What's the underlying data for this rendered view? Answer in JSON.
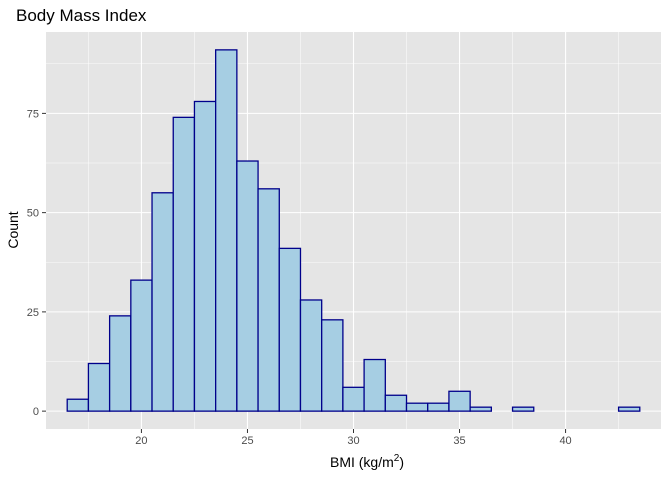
{
  "chart_data": {
    "type": "bar",
    "title": "Body Mass Index",
    "xlabel": "BMI (kg/m",
    "xlabel_superscript": "2",
    "xlabel_suffix": ")",
    "ylabel": "Count",
    "xlim": [
      15.5,
      44.5
    ],
    "ylim": [
      -4.5,
      95.5
    ],
    "x_ticks": [
      20,
      25,
      30,
      35,
      40
    ],
    "x_tick_labels": [
      "20",
      "25",
      "30",
      "35",
      "40"
    ],
    "y_ticks": [
      0,
      25,
      50,
      75
    ],
    "y_tick_labels": [
      "0",
      "25",
      "50",
      "75"
    ],
    "bin_width": 1,
    "bins": [
      {
        "x0": 16.5,
        "x1": 17.5,
        "count": 3
      },
      {
        "x0": 17.5,
        "x1": 18.5,
        "count": 12
      },
      {
        "x0": 18.5,
        "x1": 19.5,
        "count": 24
      },
      {
        "x0": 19.5,
        "x1": 20.5,
        "count": 33
      },
      {
        "x0": 20.5,
        "x1": 21.5,
        "count": 55
      },
      {
        "x0": 21.5,
        "x1": 22.5,
        "count": 74
      },
      {
        "x0": 22.5,
        "x1": 23.5,
        "count": 78
      },
      {
        "x0": 23.5,
        "x1": 24.5,
        "count": 91
      },
      {
        "x0": 24.5,
        "x1": 25.5,
        "count": 63
      },
      {
        "x0": 25.5,
        "x1": 26.5,
        "count": 56
      },
      {
        "x0": 26.5,
        "x1": 27.5,
        "count": 41
      },
      {
        "x0": 27.5,
        "x1": 28.5,
        "count": 28
      },
      {
        "x0": 28.5,
        "x1": 29.5,
        "count": 23
      },
      {
        "x0": 29.5,
        "x1": 30.5,
        "count": 6
      },
      {
        "x0": 30.5,
        "x1": 31.5,
        "count": 13
      },
      {
        "x0": 31.5,
        "x1": 32.5,
        "count": 4
      },
      {
        "x0": 32.5,
        "x1": 33.5,
        "count": 2
      },
      {
        "x0": 33.5,
        "x1": 34.5,
        "count": 2
      },
      {
        "x0": 34.5,
        "x1": 35.5,
        "count": 5
      },
      {
        "x0": 35.5,
        "x1": 36.5,
        "count": 1
      },
      {
        "x0": 36.5,
        "x1": 37.5,
        "count": 0
      },
      {
        "x0": 37.5,
        "x1": 38.5,
        "count": 1
      },
      {
        "x0": 38.5,
        "x1": 39.5,
        "count": 0
      },
      {
        "x0": 39.5,
        "x1": 40.5,
        "count": 0
      },
      {
        "x0": 40.5,
        "x1": 41.5,
        "count": 0
      },
      {
        "x0": 41.5,
        "x1": 42.5,
        "count": 0
      },
      {
        "x0": 42.5,
        "x1": 43.5,
        "count": 1
      }
    ],
    "grid": true,
    "colors": {
      "panel_background": "#E5E5E5",
      "grid_major": "#FFFFFF",
      "bar_fill": "#A6CEE3",
      "bar_outline": "#00008B",
      "tick_mark": "#333333"
    }
  }
}
